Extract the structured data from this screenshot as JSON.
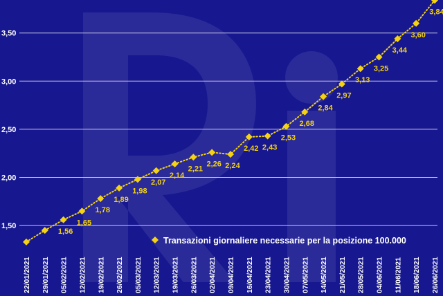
{
  "chart_data": {
    "type": "line",
    "title": "",
    "xlabel": "",
    "ylabel": "",
    "ylim": [
      1.3,
      3.9
    ],
    "y_ticks": [
      "1,50",
      "2,00",
      "2,50",
      "3,00",
      "3,50"
    ],
    "y_tick_values": [
      1.5,
      2.0,
      2.5,
      3.0,
      3.5
    ],
    "grid": true,
    "legend_position": "bottom-right",
    "series": [
      {
        "name": "Transazioni giornaliere necessarie per la posizione 100.000",
        "color": "#f5d312",
        "marker": "diamond",
        "line_style": "dotted",
        "points": [
          {
            "x": "22/01/2021",
            "y": 1.33,
            "label": ""
          },
          {
            "x": "29/01/2021",
            "y": 1.45,
            "label": ""
          },
          {
            "x": "05/02/2021",
            "y": 1.56,
            "label": "1,56"
          },
          {
            "x": "12/02/2021",
            "y": 1.65,
            "label": "1,65"
          },
          {
            "x": "19/02/2021",
            "y": 1.78,
            "label": "1,78"
          },
          {
            "x": "26/02/2021",
            "y": 1.89,
            "label": "1,89"
          },
          {
            "x": "05/03/2021",
            "y": 1.98,
            "label": "1,98"
          },
          {
            "x": "12/03/2021",
            "y": 2.07,
            "label": "2,07"
          },
          {
            "x": "19/03/2021",
            "y": 2.14,
            "label": "2,14"
          },
          {
            "x": "26/03/2021",
            "y": 2.21,
            "label": "2,21"
          },
          {
            "x": "02/04/2021",
            "y": 2.26,
            "label": "2,26"
          },
          {
            "x": "09/04/2021",
            "y": 2.24,
            "label": "2,24"
          },
          {
            "x": "16/04/2021",
            "y": 2.42,
            "label": "2,42"
          },
          {
            "x": "23/04/2021",
            "y": 2.43,
            "label": "2,43"
          },
          {
            "x": "30/04/2021",
            "y": 2.53,
            "label": "2,53"
          },
          {
            "x": "07/05/2021",
            "y": 2.68,
            "label": "2,68"
          },
          {
            "x": "14/05/2021",
            "y": 2.84,
            "label": "2,84"
          },
          {
            "x": "21/05/2021",
            "y": 2.97,
            "label": "2,97"
          },
          {
            "x": "28/05/2021",
            "y": 3.13,
            "label": "3,13"
          },
          {
            "x": "04/06/2021",
            "y": 3.25,
            "label": "3,25"
          },
          {
            "x": "11/06/2021",
            "y": 3.44,
            "label": "3,44"
          },
          {
            "x": "18/06/2021",
            "y": 3.6,
            "label": "3,60"
          },
          {
            "x": "26/06/2021",
            "y": 3.84,
            "label": "3,84"
          }
        ]
      }
    ]
  },
  "colors": {
    "background": "#17178f",
    "gridline": "#c9c9e6",
    "watermark": "#3b3ba3",
    "series": "#f5d312"
  },
  "watermark": "Ri"
}
